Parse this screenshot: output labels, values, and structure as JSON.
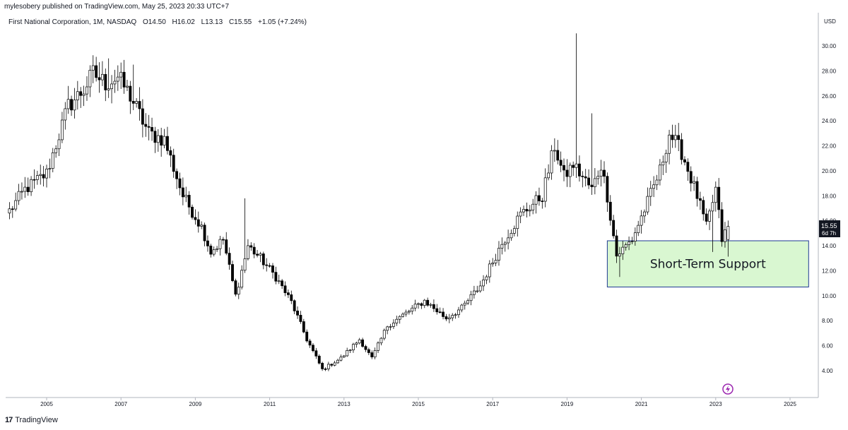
{
  "header": {
    "publisher_text": "mylesobery published on TradingView.com, May 25, 2023 20:33 UTC+7",
    "symbol": "First National Corporation, 1M, NASDAQ",
    "ohlc": {
      "open": "O14.50",
      "high": "H16.02",
      "low": "L13.13",
      "close": "C15.55",
      "change": "+1.05 (+7.24%)"
    }
  },
  "price_scale": {
    "currency": "USD",
    "tick_labels": [
      "4.00",
      "6.00",
      "8.00",
      "10.00",
      "12.00",
      "14.00",
      "16.00",
      "18.00",
      "20.00",
      "22.00",
      "24.00",
      "26.00",
      "28.00",
      "30.00"
    ],
    "current_price": "15.55",
    "countdown": "6d 7h"
  },
  "footer": {
    "logo_text": "TradingView",
    "logo_icon": "tradingview-logo-icon",
    "event_icon": "lightning-icon"
  },
  "colors": {
    "candle_up": "#ffffff",
    "candle_down": "#000000",
    "outline": "#000000",
    "support_fill": "#d9f7d1",
    "support_border": "#1f3a93"
  },
  "chart_data": {
    "type": "candlestick",
    "title": "First National Corporation, 1M, NASDAQ",
    "interval": "1M",
    "x_ticks": [
      "2005",
      "2007",
      "2009",
      "2011",
      "2013",
      "2015",
      "2017",
      "2019",
      "2021",
      "2023",
      "2025"
    ],
    "xlim": [
      "2004-01",
      "2025-11"
    ],
    "ylim": [
      3,
      32
    ],
    "grid": false,
    "annotation": {
      "label": "Short-Term Support",
      "x_start": "2020-02",
      "x_end": "2025-07",
      "y_low": 10.7,
      "y_high": 14.4
    },
    "anchors": [
      [
        "2004-01",
        16.8
      ],
      [
        "2004-06",
        18.5
      ],
      [
        "2005-01",
        19.8
      ],
      [
        "2005-08",
        25.2
      ],
      [
        "2006-01",
        26.5
      ],
      [
        "2006-04",
        27.8
      ],
      [
        "2006-08",
        27.0
      ],
      [
        "2006-12",
        27.5
      ],
      [
        "2007-04",
        26.0
      ],
      [
        "2007-10",
        23.0
      ],
      [
        "2008-03",
        22.5
      ],
      [
        "2008-09",
        18.0
      ],
      [
        "2009-03",
        15.5
      ],
      [
        "2009-06",
        13.5
      ],
      [
        "2009-10",
        14.5
      ],
      [
        "2010-02",
        10.0
      ],
      [
        "2010-06",
        14.0
      ],
      [
        "2010-10",
        13.0
      ],
      [
        "2011-03",
        11.5
      ],
      [
        "2011-08",
        9.5
      ],
      [
        "2012-01",
        6.5
      ],
      [
        "2012-06",
        4.1
      ],
      [
        "2012-12",
        5.0
      ],
      [
        "2013-06",
        6.5
      ],
      [
        "2013-10",
        5.0
      ],
      [
        "2014-03",
        7.6
      ],
      [
        "2014-09",
        8.6
      ],
      [
        "2015-03",
        9.6
      ],
      [
        "2015-10",
        8.2
      ],
      [
        "2016-03",
        9.0
      ],
      [
        "2016-09",
        10.8
      ],
      [
        "2017-04",
        14.2
      ],
      [
        "2017-10",
        16.5
      ],
      [
        "2018-05",
        18.0
      ],
      [
        "2018-09",
        22.0
      ],
      [
        "2018-12",
        19.5
      ],
      [
        "2019-03",
        20.5
      ],
      [
        "2019-09",
        18.5
      ],
      [
        "2019-12",
        20.5
      ],
      [
        "2020-02",
        18.0
      ],
      [
        "2020-05",
        13.2
      ],
      [
        "2020-10",
        14.5
      ],
      [
        "2021-03",
        17.5
      ],
      [
        "2021-07",
        20.0
      ],
      [
        "2021-10",
        23.0
      ],
      [
        "2022-02",
        21.5
      ],
      [
        "2022-07",
        18.0
      ],
      [
        "2022-10",
        15.5
      ],
      [
        "2023-01",
        18.5
      ],
      [
        "2023-03",
        14.5
      ],
      [
        "2023-05",
        15.55
      ]
    ],
    "spikes": [
      {
        "date": "2006-09",
        "high": 29.0
      },
      {
        "date": "2007-05",
        "high": 28.5
      },
      {
        "date": "2010-05",
        "high": 17.8
      },
      {
        "date": "2019-04",
        "high": 31.0
      },
      {
        "date": "2019-09",
        "high": 24.6
      },
      {
        "date": "2020-06",
        "low": 11.5
      },
      {
        "date": "2022-12",
        "low": 13.5
      },
      {
        "date": "2023-05",
        "low": 13.13
      }
    ],
    "last_candle": {
      "date": "2023-05",
      "open": 14.5,
      "high": 16.02,
      "low": 13.13,
      "close": 15.55
    }
  }
}
